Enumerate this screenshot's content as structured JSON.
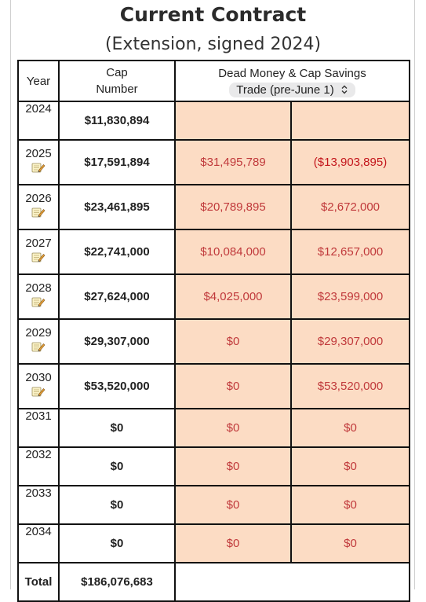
{
  "header": {
    "title": "Current Contract",
    "subtitle": "(Extension, signed 2024)"
  },
  "table": {
    "col_year": "Year",
    "col_cap": "Cap Number",
    "col_dead_savings": "Dead Money & Cap Savings",
    "scenario_select": "Trade (pre-June 1)",
    "rows": [
      {
        "year": "2024",
        "cap": "$11,830,894",
        "dead": "",
        "savings": "",
        "note": false
      },
      {
        "year": "2025",
        "cap": "$17,591,894",
        "dead": "$31,495,789",
        "savings": "($13,903,895)",
        "note": true
      },
      {
        "year": "2026",
        "cap": "$23,461,895",
        "dead": "$20,789,895",
        "savings": "$2,672,000",
        "note": true
      },
      {
        "year": "2027",
        "cap": "$22,741,000",
        "dead": "$10,084,000",
        "savings": "$12,657,000",
        "note": true
      },
      {
        "year": "2028",
        "cap": "$27,624,000",
        "dead": "$4,025,000",
        "savings": "$23,599,000",
        "note": true
      },
      {
        "year": "2029",
        "cap": "$29,307,000",
        "dead": "$0",
        "savings": "$29,307,000",
        "note": true
      },
      {
        "year": "2030",
        "cap": "$53,520,000",
        "dead": "$0",
        "savings": "$53,520,000",
        "note": true
      },
      {
        "year": "2031",
        "cap": "$0",
        "dead": "$0",
        "savings": "$0",
        "note": false
      },
      {
        "year": "2032",
        "cap": "$0",
        "dead": "$0",
        "savings": "$0",
        "note": false
      },
      {
        "year": "2033",
        "cap": "$0",
        "dead": "$0",
        "savings": "$0",
        "note": false
      },
      {
        "year": "2034",
        "cap": "$0",
        "dead": "$0",
        "savings": "$0",
        "note": false
      }
    ],
    "total_label": "Total",
    "total_cap": "$186,076,683"
  },
  "colors": {
    "cell_fill": "#fcdcc4",
    "money_text": "#c0393b",
    "negative_text": "#c3161c"
  },
  "icons": {
    "note": "memo-pencil-icon",
    "select": "chevron-up-down-icon"
  }
}
